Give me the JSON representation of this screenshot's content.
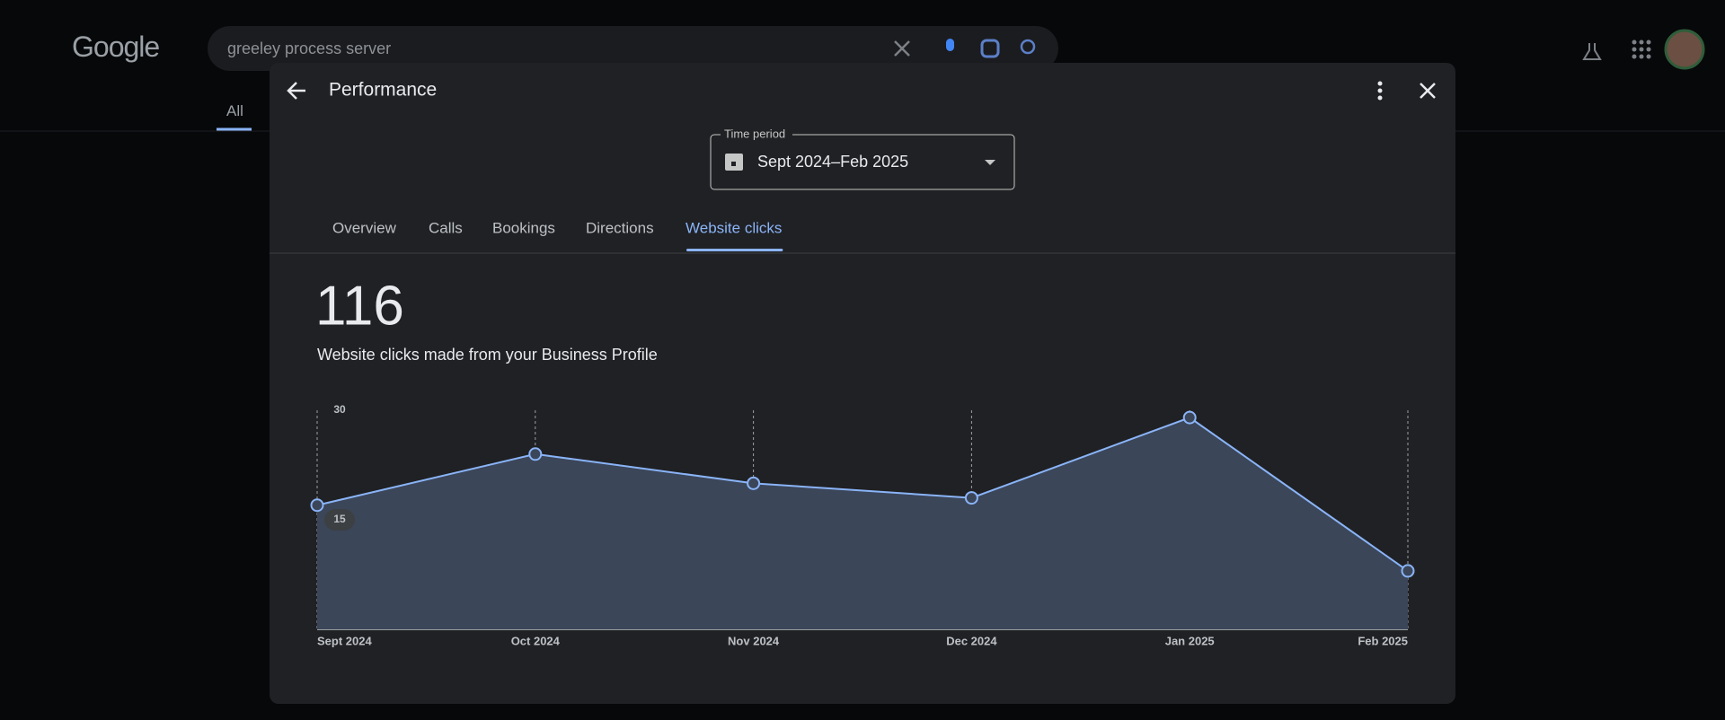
{
  "header": {
    "logo": "Google",
    "search_query": "greeley process server",
    "tabs": [
      "All"
    ]
  },
  "dialog": {
    "title": "Performance",
    "time_period_label": "Time period",
    "time_period_value": "Sept 2024–Feb 2025",
    "tabs": [
      "Overview",
      "Calls",
      "Bookings",
      "Directions",
      "Website clicks"
    ],
    "active_tab": 4,
    "total": 116,
    "total_label": "Website clicks made from your Business Profile"
  },
  "chart_data": {
    "type": "area",
    "categories": [
      "Sept 2024",
      "Oct 2024",
      "Nov 2024",
      "Dec 2024",
      "Jan 2025",
      "Feb 2025"
    ],
    "values": [
      17,
      24,
      20,
      18,
      29,
      8
    ],
    "color": "#8ab4f8",
    "ylim": [
      0,
      30
    ],
    "yticks": [
      15,
      30
    ]
  }
}
